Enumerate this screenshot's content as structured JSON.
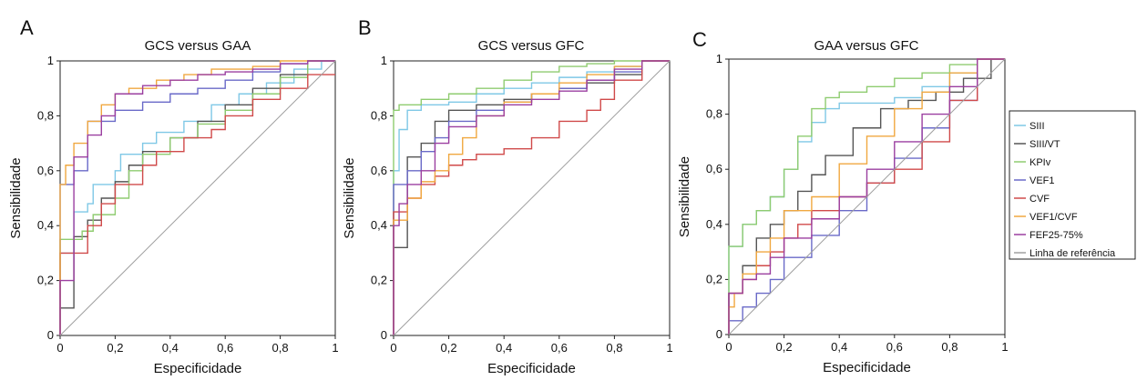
{
  "chart_data": [
    {
      "type": "line",
      "panel_label": "A",
      "title": "GCS versus GAA",
      "xlabel": "Especificidade",
      "ylabel": "Sensibilidade",
      "xlim": [
        0,
        1
      ],
      "ylim": [
        0,
        1
      ],
      "xticks": [
        "0",
        "0,2",
        "0,4",
        "0,6",
        "0,8",
        "1"
      ],
      "yticks": [
        "0",
        "0,2",
        "0,4",
        "0,6",
        "0,8",
        "1"
      ],
      "grid": false,
      "series": [
        {
          "name": "SIII",
          "color": "#7fc8e6",
          "x": [
            0,
            0,
            0.05,
            0.05,
            0.1,
            0.12,
            0.2,
            0.22,
            0.3,
            0.35,
            0.45,
            0.55,
            0.65,
            0.75,
            0.85,
            0.95,
            1
          ],
          "y": [
            0,
            0.3,
            0.3,
            0.42,
            0.45,
            0.48,
            0.55,
            0.6,
            0.66,
            0.7,
            0.74,
            0.78,
            0.84,
            0.88,
            0.92,
            0.97,
            1
          ]
        },
        {
          "name": "SIII/VT",
          "color": "#555555",
          "x": [
            0,
            0,
            0.05,
            0.05,
            0.1,
            0.15,
            0.2,
            0.25,
            0.3,
            0.4,
            0.5,
            0.6,
            0.7,
            0.8,
            0.9,
            1
          ],
          "y": [
            0,
            0.1,
            0.1,
            0.28,
            0.36,
            0.42,
            0.5,
            0.56,
            0.62,
            0.67,
            0.72,
            0.78,
            0.84,
            0.9,
            0.95,
            1
          ]
        },
        {
          "name": "KPIv",
          "color": "#8fcc70",
          "x": [
            0,
            0,
            0.08,
            0.12,
            0.2,
            0.25,
            0.3,
            0.4,
            0.5,
            0.6,
            0.7,
            0.8,
            0.9,
            1
          ],
          "y": [
            0,
            0.35,
            0.35,
            0.38,
            0.44,
            0.5,
            0.6,
            0.66,
            0.72,
            0.77,
            0.82,
            0.88,
            0.94,
            1
          ]
        },
        {
          "name": "VEF1",
          "color": "#6a6ac8",
          "x": [
            0,
            0,
            0.05,
            0.1,
            0.1,
            0.2,
            0.3,
            0.4,
            0.5,
            0.6,
            0.7,
            0.8,
            0.9,
            1
          ],
          "y": [
            0,
            0.5,
            0.55,
            0.6,
            0.72,
            0.78,
            0.82,
            0.85,
            0.88,
            0.9,
            0.93,
            0.96,
            0.99,
            1
          ]
        },
        {
          "name": "CVF",
          "color": "#d04a4a",
          "x": [
            0,
            0,
            0.1,
            0.15,
            0.2,
            0.3,
            0.35,
            0.45,
            0.55,
            0.6,
            0.7,
            0.8,
            0.9,
            1
          ],
          "y": [
            0,
            0.27,
            0.3,
            0.4,
            0.48,
            0.55,
            0.62,
            0.67,
            0.72,
            0.75,
            0.8,
            0.86,
            0.9,
            0.95
          ]
        },
        {
          "name": "VEF1/CVF",
          "color": "#f0a840",
          "x": [
            0,
            0,
            0.02,
            0.05,
            0.1,
            0.15,
            0.2,
            0.25,
            0.35,
            0.45,
            0.55,
            0.7,
            0.8,
            0.9,
            1
          ],
          "y": [
            0,
            0.47,
            0.55,
            0.62,
            0.7,
            0.78,
            0.84,
            0.88,
            0.9,
            0.93,
            0.95,
            0.97,
            0.98,
            1,
            1
          ]
        },
        {
          "name": "FEF25-75%",
          "color": "#9b3fa0",
          "x": [
            0,
            0,
            0.05,
            0.05,
            0.1,
            0.15,
            0.2,
            0.3,
            0.4,
            0.5,
            0.6,
            0.7,
            0.8,
            0.9,
            1
          ],
          "y": [
            0,
            0.18,
            0.2,
            0.54,
            0.65,
            0.73,
            0.8,
            0.88,
            0.91,
            0.93,
            0.95,
            0.96,
            0.97,
            0.99,
            1
          ]
        },
        {
          "name": "Linha de referência",
          "color": "#a0a0a0",
          "x": [
            0,
            1
          ],
          "y": [
            0,
            1
          ]
        }
      ]
    },
    {
      "type": "line",
      "panel_label": "B",
      "title": "GCS versus GFC",
      "xlabel": "Especificidade",
      "ylabel": "Sensibilidade",
      "xlim": [
        0,
        1
      ],
      "ylim": [
        0,
        1
      ],
      "xticks": [
        "0",
        "0,2",
        "0,4",
        "0,6",
        "0,8",
        "1"
      ],
      "yticks": [
        "0",
        "0,2",
        "0,4",
        "0,6",
        "0,8",
        "1"
      ],
      "grid": false,
      "series": [
        {
          "name": "SIII",
          "color": "#7fc8e6",
          "x": [
            0,
            0,
            0.02,
            0.05,
            0.05,
            0.1,
            0.2,
            0.3,
            0.4,
            0.5,
            0.6,
            0.7,
            0.8,
            0.9,
            1
          ],
          "y": [
            0,
            0.5,
            0.6,
            0.75,
            0.8,
            0.82,
            0.84,
            0.85,
            0.88,
            0.9,
            0.92,
            0.94,
            0.96,
            0.98,
            1
          ]
        },
        {
          "name": "SIII/VT",
          "color": "#555555",
          "x": [
            0,
            0,
            0.05,
            0.05,
            0.1,
            0.15,
            0.2,
            0.25,
            0.3,
            0.4,
            0.5,
            0.6,
            0.7,
            0.8,
            0.9,
            1
          ],
          "y": [
            0,
            0.32,
            0.32,
            0.6,
            0.65,
            0.7,
            0.78,
            0.82,
            0.82,
            0.84,
            0.86,
            0.88,
            0.9,
            0.92,
            0.95,
            1
          ]
        },
        {
          "name": "KPIv",
          "color": "#8fcc70",
          "x": [
            0,
            0,
            0.02,
            0.1,
            0.2,
            0.3,
            0.4,
            0.5,
            0.6,
            0.7,
            0.8,
            0.9,
            1
          ],
          "y": [
            0,
            0.78,
            0.82,
            0.84,
            0.86,
            0.88,
            0.9,
            0.93,
            0.96,
            0.98,
            0.99,
            1,
            1
          ]
        },
        {
          "name": "VEF1",
          "color": "#6a6ac8",
          "x": [
            0,
            0,
            0.05,
            0.1,
            0.15,
            0.2,
            0.3,
            0.4,
            0.5,
            0.6,
            0.7,
            0.8,
            0.9,
            1
          ],
          "y": [
            0,
            0.42,
            0.55,
            0.6,
            0.67,
            0.72,
            0.78,
            0.82,
            0.85,
            0.88,
            0.9,
            0.93,
            0.96,
            1
          ]
        },
        {
          "name": "CVF",
          "color": "#d04a4a",
          "x": [
            0,
            0,
            0.05,
            0.1,
            0.15,
            0.2,
            0.25,
            0.3,
            0.4,
            0.5,
            0.6,
            0.7,
            0.75,
            0.8,
            0.9,
            1
          ],
          "y": [
            0,
            0.42,
            0.45,
            0.5,
            0.55,
            0.58,
            0.62,
            0.64,
            0.66,
            0.68,
            0.72,
            0.78,
            0.82,
            0.86,
            0.93,
            1
          ]
        },
        {
          "name": "VEF1/CVF",
          "color": "#f0a840",
          "x": [
            0,
            0,
            0.05,
            0.1,
            0.15,
            0.2,
            0.25,
            0.3,
            0.4,
            0.5,
            0.6,
            0.7,
            0.8,
            0.9,
            1
          ],
          "y": [
            0,
            0.28,
            0.42,
            0.5,
            0.56,
            0.6,
            0.66,
            0.72,
            0.8,
            0.85,
            0.88,
            0.92,
            0.95,
            0.98,
            1
          ]
        },
        {
          "name": "FEF25-75%",
          "color": "#9b3fa0",
          "x": [
            0,
            0,
            0.02,
            0.05,
            0.1,
            0.15,
            0.2,
            0.3,
            0.4,
            0.5,
            0.6,
            0.7,
            0.8,
            0.9,
            1
          ],
          "y": [
            0,
            0.13,
            0.4,
            0.48,
            0.55,
            0.6,
            0.7,
            0.76,
            0.8,
            0.84,
            0.86,
            0.89,
            0.93,
            0.97,
            1
          ]
        },
        {
          "name": "Linha de referência",
          "color": "#a0a0a0",
          "x": [
            0,
            1
          ],
          "y": [
            0,
            1
          ]
        }
      ]
    },
    {
      "type": "line",
      "panel_label": "C",
      "title": "GAA versus GFC",
      "xlabel": "Especificidade",
      "ylabel": "Sensibilidade",
      "xlim": [
        0,
        1
      ],
      "ylim": [
        0,
        1
      ],
      "xticks": [
        "0",
        "0,2",
        "0,4",
        "0,6",
        "0,8",
        "1"
      ],
      "yticks": [
        "0",
        "0,2",
        "0,4",
        "0,6",
        "0,8",
        "1"
      ],
      "grid": false,
      "series": [
        {
          "name": "SIII",
          "color": "#7fc8e6",
          "x": [
            0,
            0,
            0.05,
            0.1,
            0.15,
            0.2,
            0.25,
            0.3,
            0.35,
            0.4,
            0.5,
            0.6,
            0.7,
            0.8,
            0.9,
            1
          ],
          "y": [
            0,
            0.32,
            0.32,
            0.4,
            0.45,
            0.5,
            0.6,
            0.7,
            0.77,
            0.82,
            0.84,
            0.84,
            0.86,
            0.9,
            0.95,
            1
          ]
        },
        {
          "name": "SIII/VT",
          "color": "#555555",
          "x": [
            0,
            0,
            0.05,
            0.1,
            0.15,
            0.2,
            0.25,
            0.3,
            0.35,
            0.45,
            0.55,
            0.65,
            0.75,
            0.85,
            0.95,
            1
          ],
          "y": [
            0,
            0.1,
            0.15,
            0.25,
            0.35,
            0.4,
            0.45,
            0.52,
            0.58,
            0.65,
            0.75,
            0.82,
            0.85,
            0.88,
            0.93,
            1
          ]
        },
        {
          "name": "KPIv",
          "color": "#8fcc70",
          "x": [
            0,
            0,
            0.05,
            0.1,
            0.15,
            0.2,
            0.25,
            0.3,
            0.35,
            0.4,
            0.5,
            0.6,
            0.7,
            0.8,
            0.9,
            1
          ],
          "y": [
            0,
            0.2,
            0.32,
            0.4,
            0.45,
            0.5,
            0.6,
            0.72,
            0.82,
            0.86,
            0.88,
            0.9,
            0.93,
            0.95,
            0.98,
            1
          ]
        },
        {
          "name": "VEF1",
          "color": "#6a6ac8",
          "x": [
            0,
            0.05,
            0.1,
            0.15,
            0.2,
            0.3,
            0.4,
            0.5,
            0.6,
            0.7,
            0.8,
            0.9,
            1
          ],
          "y": [
            0,
            0.05,
            0.1,
            0.15,
            0.2,
            0.28,
            0.36,
            0.45,
            0.55,
            0.64,
            0.75,
            0.85,
            1
          ]
        },
        {
          "name": "CVF",
          "color": "#d04a4a",
          "x": [
            0,
            0,
            0.05,
            0.1,
            0.15,
            0.2,
            0.25,
            0.3,
            0.4,
            0.5,
            0.6,
            0.7,
            0.8,
            0.9,
            1
          ],
          "y": [
            0,
            0.1,
            0.15,
            0.2,
            0.25,
            0.3,
            0.35,
            0.4,
            0.45,
            0.5,
            0.55,
            0.6,
            0.7,
            0.85,
            1
          ]
        },
        {
          "name": "VEF1/CVF",
          "color": "#f0a840",
          "x": [
            0,
            0.02,
            0.05,
            0.1,
            0.15,
            0.2,
            0.3,
            0.4,
            0.5,
            0.6,
            0.7,
            0.8,
            0.9,
            1
          ],
          "y": [
            0,
            0.1,
            0.15,
            0.22,
            0.3,
            0.35,
            0.45,
            0.5,
            0.62,
            0.72,
            0.82,
            0.88,
            0.95,
            1
          ]
        },
        {
          "name": "FEF25-75%",
          "color": "#9b3fa0",
          "x": [
            0,
            0,
            0.05,
            0.1,
            0.15,
            0.2,
            0.3,
            0.4,
            0.5,
            0.6,
            0.7,
            0.8,
            0.9,
            1
          ],
          "y": [
            0,
            0.1,
            0.15,
            0.2,
            0.22,
            0.28,
            0.35,
            0.42,
            0.5,
            0.6,
            0.7,
            0.8,
            0.9,
            1
          ]
        },
        {
          "name": "Linha de referência",
          "color": "#a0a0a0",
          "x": [
            0,
            1
          ],
          "y": [
            0,
            1
          ]
        }
      ]
    }
  ],
  "legend": {
    "placement": "right",
    "items": [
      {
        "label": "SIII",
        "color": "#7fc8e6"
      },
      {
        "label": "SIII/VT",
        "color": "#555555"
      },
      {
        "label": "KPIv",
        "color": "#8fcc70"
      },
      {
        "label": "VEF1",
        "color": "#6a6ac8"
      },
      {
        "label": "CVF",
        "color": "#d04a4a"
      },
      {
        "label": "VEF1/CVF",
        "color": "#f0a840"
      },
      {
        "label": "FEF25-75%",
        "color": "#9b3fa0"
      },
      {
        "label": "Linha de referência",
        "color": "#a0a0a0"
      }
    ]
  }
}
